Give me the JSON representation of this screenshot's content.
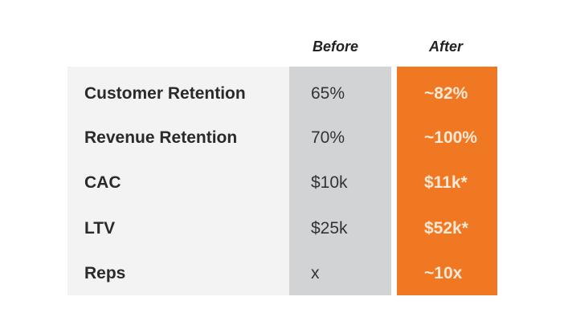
{
  "chart_data": {
    "type": "table",
    "columns": [
      "Before",
      "After"
    ],
    "rows": [
      {
        "label": "Customer Retention",
        "before": "65%",
        "after": "~82%"
      },
      {
        "label": "Revenue Retention",
        "before": "70%",
        "after": "~100%"
      },
      {
        "label": "CAC",
        "before": "$10k",
        "after": "$11k*"
      },
      {
        "label": "LTV",
        "before": "$25k",
        "after": "$52k*"
      },
      {
        "label": "Reps",
        "before": "x",
        "after": "~10x"
      }
    ],
    "colors": {
      "panel": "#f3f3f4",
      "before_column": "#d2d3d4",
      "after_column": "#f07823"
    }
  }
}
